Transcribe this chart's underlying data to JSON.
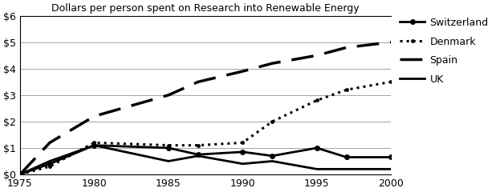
{
  "title": "Dollars per person spent on Research into Renewable Energy",
  "years": [
    1975,
    1977,
    1980,
    1985,
    1987,
    1990,
    1992,
    1995,
    1997,
    2000
  ],
  "switzerland": [
    0,
    0.4,
    1.1,
    1.0,
    0.75,
    0.85,
    0.7,
    1.0,
    0.65,
    0.65
  ],
  "denmark": [
    0,
    0.3,
    1.2,
    1.1,
    1.1,
    1.2,
    2.0,
    2.8,
    3.2,
    3.5
  ],
  "spain": [
    0,
    1.2,
    2.2,
    3.0,
    3.5,
    3.9,
    4.2,
    4.5,
    4.8,
    5.0
  ],
  "uk": [
    0,
    0.5,
    1.1,
    0.5,
    0.7,
    0.4,
    0.5,
    0.2,
    0.2,
    0.2
  ],
  "ylim": [
    0,
    6
  ],
  "yticks": [
    0,
    1,
    2,
    3,
    4,
    5,
    6
  ],
  "ytick_labels": [
    "$0",
    "$1",
    "$2",
    "$3",
    "$4",
    "$5",
    "$6"
  ],
  "xticks": [
    1975,
    1980,
    1985,
    1990,
    1995,
    2000
  ],
  "legend_labels": [
    "Switzerland",
    "Denmark",
    "Spain",
    "UK"
  ]
}
